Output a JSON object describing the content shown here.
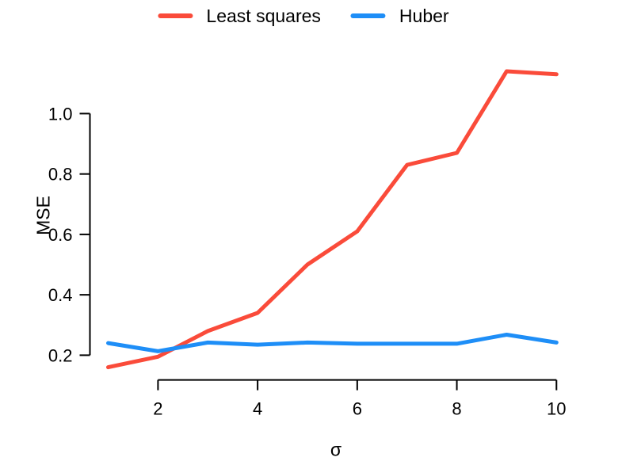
{
  "chart_data": {
    "type": "line",
    "title": "",
    "xlabel": "σ",
    "ylabel": "MSE",
    "x": [
      1,
      2,
      3,
      4,
      5,
      6,
      7,
      8,
      9,
      10
    ],
    "series": [
      {
        "name": "Least squares",
        "color": "#FA4B3A",
        "values": [
          0.16,
          0.195,
          0.28,
          0.34,
          0.5,
          0.61,
          0.83,
          0.87,
          1.14,
          1.13
        ]
      },
      {
        "name": "Huber",
        "color": "#1E8EF7",
        "values": [
          0.24,
          0.213,
          0.242,
          0.235,
          0.242,
          0.238,
          0.238,
          0.238,
          0.268,
          0.242
        ]
      }
    ],
    "xticks": {
      "values": [
        2,
        4,
        6,
        8,
        10
      ],
      "labels": [
        "2",
        "4",
        "6",
        "8",
        "10"
      ]
    },
    "yticks": {
      "values": [
        0.2,
        0.4,
        0.6,
        0.8,
        1.0
      ],
      "labels": [
        "0.2",
        "0.4",
        "0.6",
        "0.8",
        "1.0"
      ]
    },
    "xlim": [
      1,
      10
    ],
    "ylim": [
      0.14,
      1.16
    ],
    "grid": false,
    "legend_position": "top-center",
    "axis_color": "#000000"
  }
}
